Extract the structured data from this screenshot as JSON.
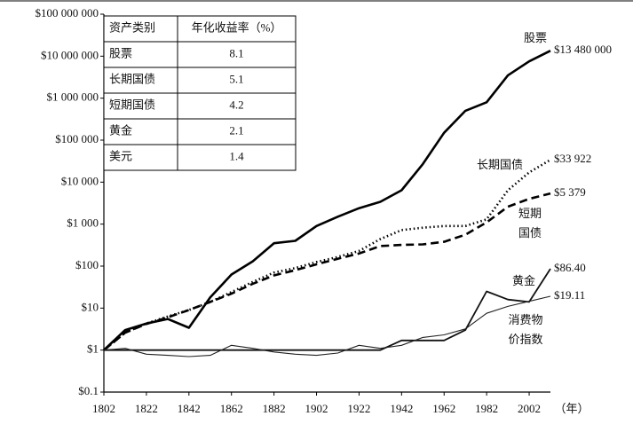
{
  "chart_data": {
    "type": "line",
    "log_y": true,
    "x": [
      1802,
      1812,
      1822,
      1832,
      1842,
      1852,
      1862,
      1872,
      1882,
      1892,
      1902,
      1912,
      1922,
      1932,
      1942,
      1952,
      1962,
      1972,
      1982,
      1992,
      2002,
      2012
    ],
    "xlim": [
      1802,
      2012
    ],
    "xticks": [
      1802,
      1822,
      1842,
      1862,
      1882,
      1902,
      1922,
      1942,
      1962,
      1982,
      2002
    ],
    "x_unit": "（年）",
    "ylim": [
      0.1,
      100000000
    ],
    "yticks": [
      {
        "value": 0.1,
        "label": "$0.1"
      },
      {
        "value": 1,
        "label": "$1"
      },
      {
        "value": 10,
        "label": "$10"
      },
      {
        "value": 100,
        "label": "$100"
      },
      {
        "value": 1000,
        "label": "$1 000"
      },
      {
        "value": 10000,
        "label": "$10 000"
      },
      {
        "value": 100000,
        "label": "$100 000"
      },
      {
        "value": 1000000,
        "label": "$1 000 000"
      },
      {
        "value": 10000000,
        "label": "$10 000 000"
      },
      {
        "value": 100000000,
        "label": "$100 000 000"
      }
    ],
    "series": [
      {
        "label_lines": [
          "股票"
        ],
        "color": "#000000",
        "line_style": "solid",
        "weight": "thick",
        "values": [
          1,
          3,
          4.3,
          5.5,
          3.4,
          18,
          63,
          130,
          350,
          400,
          900,
          1500,
          2400,
          3400,
          6400,
          27000,
          150000,
          500000,
          800000,
          3500000,
          7500000,
          13480000
        ],
        "value_labels": [
          null,
          null,
          null,
          null,
          null,
          null,
          null,
          null,
          null,
          null,
          null,
          null,
          null,
          null,
          null,
          null,
          null,
          null,
          null,
          null,
          null,
          "$13 480 000"
        ]
      },
      {
        "label_lines": [
          "长期国债"
        ],
        "color": "#000000",
        "line_style": "dotted",
        "weight": "thick",
        "values": [
          1,
          2.6,
          4.3,
          6.3,
          9,
          14,
          24,
          42,
          70,
          90,
          125,
          165,
          230,
          440,
          720,
          820,
          900,
          900,
          1300,
          6400,
          17000,
          33922
        ],
        "value_labels": [
          null,
          null,
          null,
          null,
          null,
          null,
          null,
          null,
          null,
          null,
          null,
          null,
          null,
          null,
          null,
          null,
          null,
          null,
          null,
          null,
          null,
          "$33 922"
        ]
      },
      {
        "label_lines": [
          "短期",
          "国债"
        ],
        "color": "#000000",
        "line_style": "dashed",
        "weight": "thick",
        "values": [
          1,
          2.6,
          4.2,
          6,
          9,
          14,
          22,
          38,
          60,
          80,
          110,
          150,
          200,
          300,
          320,
          330,
          380,
          560,
          1100,
          2600,
          4000,
          5379
        ],
        "value_labels": [
          null,
          null,
          null,
          null,
          null,
          null,
          null,
          null,
          null,
          null,
          null,
          null,
          null,
          null,
          null,
          null,
          null,
          null,
          null,
          null,
          null,
          "$5 379"
        ]
      },
      {
        "label_lines": [
          "黄金"
        ],
        "color": "#111111",
        "line_style": "solid",
        "weight": "medium",
        "values": [
          1,
          1,
          1,
          1,
          1,
          1,
          1,
          1,
          1,
          1,
          1,
          1,
          1,
          1,
          1.7,
          1.7,
          1.7,
          3,
          25,
          16,
          14,
          86.4
        ],
        "value_labels": [
          null,
          null,
          null,
          null,
          null,
          null,
          null,
          null,
          null,
          null,
          null,
          null,
          null,
          null,
          null,
          null,
          null,
          null,
          null,
          null,
          null,
          "$86.40"
        ]
      },
      {
        "label_lines": [
          "消费物",
          "价指数"
        ],
        "color": "#222222",
        "line_style": "solid",
        "weight": "thin",
        "values": [
          1,
          1.1,
          0.8,
          0.75,
          0.7,
          0.75,
          1.3,
          1.1,
          0.9,
          0.8,
          0.75,
          0.85,
          1.3,
          1.1,
          1.3,
          2,
          2.3,
          3.2,
          7.5,
          11,
          14.5,
          19.11
        ],
        "value_labels": [
          null,
          null,
          null,
          null,
          null,
          null,
          null,
          null,
          null,
          null,
          null,
          null,
          null,
          null,
          null,
          null,
          null,
          null,
          null,
          null,
          null,
          "$19.11"
        ]
      }
    ],
    "table": {
      "header": [
        "资产类别",
        "年化收益率（%）"
      ],
      "rows": [
        [
          "股票",
          8.1
        ],
        [
          "长期国债",
          5.1
        ],
        [
          "短期国债",
          4.2
        ],
        [
          "黄金",
          2.1
        ],
        [
          "美元",
          1.4
        ]
      ]
    }
  }
}
